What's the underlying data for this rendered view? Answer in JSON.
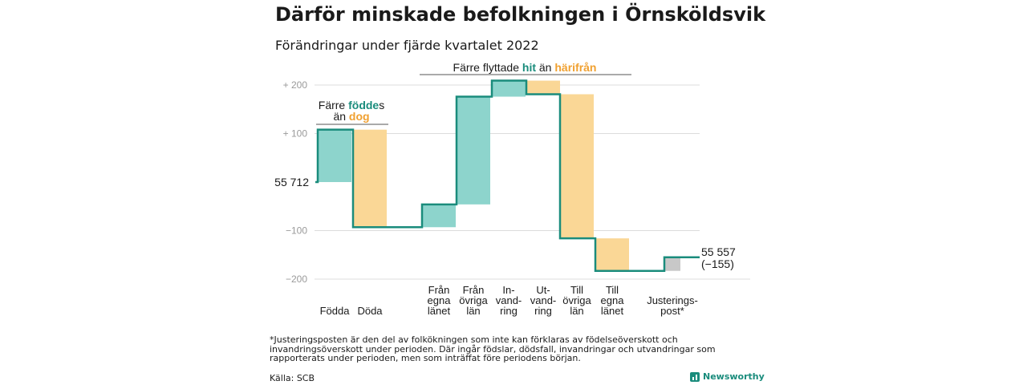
{
  "title": "Därför minskade befolkningen i Örnsköldsvik",
  "subtitle": "Förändringar under fjärde kvartalet 2022",
  "footnote": "*Justeringsposten är den del av folkökningen som inte kan förklaras av födelseöverskott och invandringsöverskott under perioden. Där ingår födslar, dödsfall, invandringar och utvandringar som rapporterats under perioden, men som inträffat före periodens början.",
  "source": "Källa: SCB",
  "brand": "Newsworthy",
  "colors": {
    "positive": "#8dd4cc",
    "negative": "#fad796",
    "adjustment": "#c8c8c8",
    "line": "#1a8c7c",
    "accent_teal": "#1a8c7c",
    "accent_orange": "#f0a030"
  },
  "chart_data": {
    "type": "waterfall",
    "start_label": "55 712",
    "end_label": "55 557",
    "end_change_label": "(−155)",
    "start_value": 55712,
    "end_value": 55557,
    "ylim": [
      -200,
      200
    ],
    "yticks": [
      200,
      100,
      -100,
      -200
    ],
    "ytick_labels": [
      "+ 200",
      "+ 100",
      "−100",
      "−200"
    ],
    "steps": [
      {
        "label": [
          "Födda"
        ],
        "change": 108,
        "kind": "positive"
      },
      {
        "label": [
          "Döda"
        ],
        "change": -201,
        "kind": "negative"
      },
      {
        "label": [
          "Från",
          "egna",
          "länet"
        ],
        "change": 47,
        "kind": "positive"
      },
      {
        "label": [
          "Från",
          "övriga",
          "län"
        ],
        "change": 222,
        "kind": "positive"
      },
      {
        "label": [
          "In-",
          "vand-",
          "ring"
        ],
        "change": 33,
        "kind": "positive"
      },
      {
        "label": [
          "Ut-",
          "vand-",
          "ring"
        ],
        "change": -28,
        "kind": "negative"
      },
      {
        "label": [
          "Till",
          "övriga",
          "län"
        ],
        "change": -297,
        "kind": "negative"
      },
      {
        "label": [
          "Till",
          "egna",
          "länet"
        ],
        "change": -67,
        "kind": "negative"
      },
      {
        "label": [
          "Justerings-",
          "post*"
        ],
        "change": 28,
        "kind": "adjustment"
      }
    ],
    "annotations": [
      {
        "lines": [
          [
            "Färre ",
            "födde",
            "s"
          ],
          [
            "än ",
            "dog",
            ""
          ]
        ]
      },
      {
        "lines": [
          [
            "Färre flyttade ",
            "hit",
            " än ",
            "härifrån"
          ]
        ]
      }
    ]
  }
}
